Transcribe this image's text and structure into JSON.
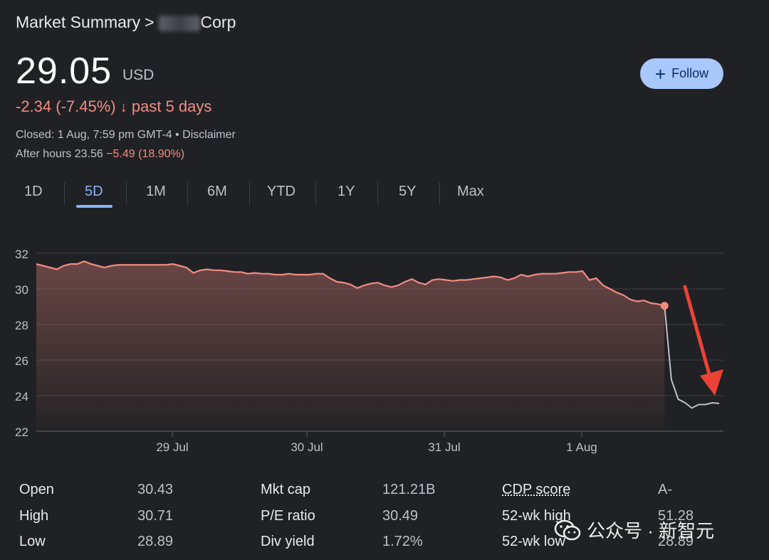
{
  "breadcrumb": {
    "root": "Market Summary",
    "separator": ">",
    "company_suffix": "Corp"
  },
  "quote": {
    "price": "29.05",
    "currency": "USD",
    "change": "-2.34 (-7.45%)",
    "change_arrow": "↓",
    "change_period": "past 5 days",
    "closed": "Closed: 1 Aug, 7:59 pm GMT-4 • Disclaimer",
    "after_hours_label": "After hours 23.56",
    "after_hours_change": "−5.49 (18.90%)"
  },
  "follow_button": {
    "icon": "plus-icon",
    "label": "Follow"
  },
  "range_tabs": [
    "1D",
    "5D",
    "1M",
    "6M",
    "YTD",
    "1Y",
    "5Y",
    "Max"
  ],
  "active_tab": "5D",
  "colors": {
    "background": "#202124",
    "price_line": "#f28b82",
    "after_hours_line": "#bdc1c6",
    "accent": "#8ab4f8",
    "annotation_arrow": "#ea4335"
  },
  "chart_data": {
    "type": "area",
    "y_ticks": [
      32,
      30,
      28,
      26,
      24,
      22
    ],
    "ylim": [
      22,
      32
    ],
    "x_tick_labels": [
      "29 Jul",
      "30 Jul",
      "31 Jul",
      "1 Aug"
    ],
    "series": [
      {
        "points": [
          [
            0,
            31.4
          ],
          [
            1,
            31.3
          ],
          [
            2,
            31.2
          ],
          [
            3,
            31.1
          ],
          [
            4,
            31.3
          ],
          [
            5,
            31.4
          ],
          [
            6,
            31.4
          ],
          [
            7,
            31.55
          ],
          [
            8,
            31.4
          ],
          [
            9,
            31.3
          ],
          [
            10,
            31.2
          ],
          [
            11,
            31.3
          ],
          [
            12,
            31.35
          ],
          [
            13,
            31.35
          ],
          [
            14,
            31.35
          ],
          [
            15,
            31.35
          ],
          [
            16,
            31.35
          ],
          [
            17,
            31.35
          ],
          [
            18,
            31.35
          ],
          [
            19,
            31.35
          ],
          [
            20,
            31.4
          ],
          [
            21,
            31.3
          ],
          [
            22,
            31.2
          ],
          [
            23,
            30.9
          ],
          [
            24,
            31.05
          ],
          [
            25,
            31.1
          ],
          [
            26,
            31.05
          ],
          [
            27,
            31.05
          ],
          [
            28,
            31.0
          ],
          [
            29,
            30.95
          ],
          [
            30,
            30.95
          ],
          [
            31,
            30.85
          ],
          [
            32,
            30.9
          ],
          [
            33,
            30.85
          ],
          [
            34,
            30.85
          ],
          [
            35,
            30.8
          ],
          [
            36,
            30.8
          ],
          [
            37,
            30.85
          ],
          [
            38,
            30.8
          ],
          [
            39,
            30.8
          ],
          [
            40,
            30.8
          ],
          [
            41,
            30.85
          ],
          [
            42,
            30.85
          ],
          [
            43,
            30.6
          ],
          [
            44,
            30.4
          ],
          [
            45,
            30.35
          ],
          [
            46,
            30.25
          ],
          [
            47,
            30.05
          ],
          [
            48,
            30.2
          ],
          [
            49,
            30.3
          ],
          [
            50,
            30.35
          ],
          [
            51,
            30.2
          ],
          [
            52,
            30.1
          ],
          [
            53,
            30.2
          ],
          [
            54,
            30.4
          ],
          [
            55,
            30.55
          ],
          [
            56,
            30.35
          ],
          [
            57,
            30.25
          ],
          [
            58,
            30.5
          ],
          [
            59,
            30.55
          ],
          [
            60,
            30.5
          ],
          [
            61,
            30.45
          ],
          [
            62,
            30.5
          ],
          [
            63,
            30.5
          ],
          [
            64,
            30.55
          ],
          [
            65,
            30.6
          ],
          [
            66,
            30.65
          ],
          [
            67,
            30.7
          ],
          [
            68,
            30.65
          ],
          [
            69,
            30.5
          ],
          [
            70,
            30.6
          ],
          [
            71,
            30.8
          ],
          [
            72,
            30.7
          ],
          [
            73,
            30.8
          ],
          [
            74,
            30.85
          ],
          [
            75,
            30.85
          ],
          [
            76,
            30.85
          ],
          [
            77,
            30.9
          ],
          [
            78,
            30.95
          ],
          [
            79,
            30.95
          ],
          [
            80,
            31.0
          ],
          [
            81,
            30.5
          ],
          [
            82,
            30.6
          ],
          [
            83,
            30.2
          ],
          [
            84,
            30.0
          ],
          [
            85,
            29.8
          ],
          [
            86,
            29.65
          ],
          [
            87,
            29.4
          ],
          [
            88,
            29.3
          ],
          [
            89,
            29.35
          ],
          [
            90,
            29.2
          ],
          [
            91,
            29.15
          ],
          [
            92,
            29.05
          ]
        ],
        "x_max": 100
      },
      {
        "points": [
          [
            92,
            29.05
          ],
          [
            93,
            24.9
          ],
          [
            94,
            23.8
          ],
          [
            95,
            23.6
          ],
          [
            96,
            23.3
          ],
          [
            97,
            23.5
          ],
          [
            98,
            23.5
          ],
          [
            99,
            23.6
          ],
          [
            100,
            23.56
          ]
        ],
        "x_max": 100
      }
    ]
  },
  "stats": [
    [
      {
        "label": "Open",
        "value": "30.43"
      },
      {
        "label": "Mkt cap",
        "value": "121.21B"
      },
      {
        "label": "CDP score",
        "value": "A-"
      }
    ],
    [
      {
        "label": "High",
        "value": "30.71"
      },
      {
        "label": "P/E ratio",
        "value": "30.49"
      },
      {
        "label": "52-wk high",
        "value": "51.28"
      }
    ],
    [
      {
        "label": "Low",
        "value": "28.89"
      },
      {
        "label": "Div yield",
        "value": "1.72%"
      },
      {
        "label": "52-wk low",
        "value": "28.89"
      }
    ]
  ],
  "watermark": {
    "icon": "wechat-icon",
    "text": "公众号 · 新智元"
  }
}
